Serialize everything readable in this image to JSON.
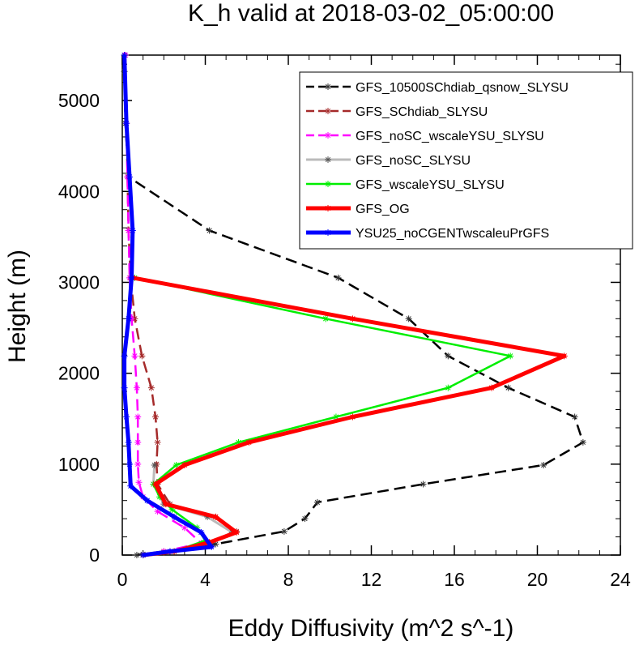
{
  "chart_data": {
    "type": "line",
    "title": "K_h valid at 2018-03-02_05:00:00",
    "xlabel": "Eddy Diffusivity (m^2 s^-1)",
    "ylabel": "Height (m)",
    "xlim": [
      0,
      24
    ],
    "ylim": [
      0,
      5500
    ],
    "xticks": [
      0,
      4,
      8,
      12,
      16,
      20,
      24
    ],
    "yticks": [
      0,
      1000,
      2000,
      3000,
      4000,
      5000
    ],
    "legend_position": "top-right",
    "grid": false,
    "series": [
      {
        "name": "GFS_10500SChdiab_qsnow_SLYSU",
        "color": "#000000",
        "dash": "dashed",
        "width": 2.5,
        "points": [
          [
            0.7,
            0
          ],
          [
            1.0,
            10
          ],
          [
            2.0,
            40
          ],
          [
            4.5,
            120
          ],
          [
            7.8,
            260
          ],
          [
            8.8,
            400
          ],
          [
            9.4,
            580
          ],
          [
            14.5,
            780
          ],
          [
            20.3,
            990
          ],
          [
            22.2,
            1240
          ],
          [
            21.8,
            1520
          ],
          [
            18.6,
            1840
          ],
          [
            15.7,
            2190
          ],
          [
            13.8,
            2600
          ],
          [
            10.4,
            3050
          ],
          [
            4.2,
            3570
          ],
          [
            0.3,
            4160
          ],
          [
            0.15,
            4750
          ],
          [
            0.1,
            5320
          ],
          [
            0.1,
            5500
          ]
        ]
      },
      {
        "name": "GFS_SChdiab_SLYSU",
        "color": "#a52a2a",
        "dash": "dashed",
        "width": 2.5,
        "points": [
          [
            1.0,
            0
          ],
          [
            2.0,
            30
          ],
          [
            4.2,
            120
          ],
          [
            5.5,
            260
          ],
          [
            4.5,
            420
          ],
          [
            2.3,
            560
          ],
          [
            1.7,
            780
          ],
          [
            1.65,
            1000
          ],
          [
            1.7,
            1240
          ],
          [
            1.6,
            1520
          ],
          [
            1.4,
            1840
          ],
          [
            0.95,
            2190
          ],
          [
            0.6,
            2600
          ],
          [
            0.4,
            3050
          ],
          [
            0.3,
            3570
          ],
          [
            0.25,
            4160
          ],
          [
            0.2,
            4750
          ],
          [
            0.15,
            5500
          ]
        ]
      },
      {
        "name": "GFS_noSC_wscaleYSU_SLYSU",
        "color": "#ff00ff",
        "dash": "dashed",
        "width": 2.5,
        "points": [
          [
            1.0,
            0
          ],
          [
            2.0,
            40
          ],
          [
            3.8,
            130
          ],
          [
            3.0,
            300
          ],
          [
            1.7,
            480
          ],
          [
            1.0,
            640
          ],
          [
            0.8,
            800
          ],
          [
            0.75,
            1000
          ],
          [
            0.75,
            1240
          ],
          [
            0.75,
            1520
          ],
          [
            0.7,
            1840
          ],
          [
            0.6,
            2190
          ],
          [
            0.45,
            2600
          ],
          [
            0.35,
            3050
          ],
          [
            0.3,
            3570
          ],
          [
            0.25,
            4160
          ],
          [
            0.2,
            4750
          ],
          [
            0.15,
            5500
          ]
        ]
      },
      {
        "name": "GFS_noSC_SLYSU",
        "color": "#bbbbbb",
        "dash": "solid",
        "width": 3,
        "points": [
          [
            1.0,
            0
          ],
          [
            2.5,
            40
          ],
          [
            4.2,
            130
          ],
          [
            5.3,
            250
          ],
          [
            4.1,
            420
          ],
          [
            2.0,
            560
          ],
          [
            1.5,
            780
          ],
          [
            1.55,
            990
          ]
        ]
      },
      {
        "name": "GFS_wscaleYSU_SLYSU",
        "color": "#00ee00",
        "dash": "solid",
        "width": 2.5,
        "points": [
          [
            1.0,
            0
          ],
          [
            2.5,
            40
          ],
          [
            4.0,
            160
          ],
          [
            3.6,
            300
          ],
          [
            2.4,
            500
          ],
          [
            1.8,
            640
          ],
          [
            1.5,
            780
          ],
          [
            2.6,
            990
          ],
          [
            5.6,
            1240
          ],
          [
            10.3,
            1520
          ],
          [
            15.7,
            1840
          ],
          [
            18.7,
            2190
          ],
          [
            9.8,
            2600
          ],
          [
            0.6,
            3050
          ]
        ]
      },
      {
        "name": "GFS_OG",
        "color": "#ff0000",
        "dash": "solid",
        "width": 5,
        "points": [
          [
            1.0,
            0
          ],
          [
            2.5,
            40
          ],
          [
            4.2,
            140
          ],
          [
            5.5,
            250
          ],
          [
            4.5,
            420
          ],
          [
            2.1,
            560
          ],
          [
            1.6,
            780
          ],
          [
            3.0,
            990
          ],
          [
            6.1,
            1240
          ],
          [
            11.1,
            1520
          ],
          [
            17.8,
            1840
          ],
          [
            21.3,
            2190
          ],
          [
            11.1,
            2600
          ],
          [
            0.5,
            3050
          ]
        ]
      },
      {
        "name": "YSU25_noCGENTwscaleuPrGFS",
        "color": "#0000ff",
        "dash": "solid",
        "width": 5,
        "points": [
          [
            1.0,
            0
          ],
          [
            2.3,
            40
          ],
          [
            4.3,
            90
          ],
          [
            3.8,
            250
          ],
          [
            2.5,
            420
          ],
          [
            1.2,
            600
          ],
          [
            0.4,
            760
          ],
          [
            0.35,
            1000
          ],
          [
            0.3,
            1240
          ],
          [
            0.2,
            1520
          ],
          [
            0.1,
            1840
          ],
          [
            0.1,
            2190
          ],
          [
            0.3,
            2600
          ],
          [
            0.45,
            3050
          ],
          [
            0.5,
            3570
          ],
          [
            0.35,
            4160
          ],
          [
            0.2,
            4750
          ],
          [
            0.1,
            5500
          ]
        ]
      }
    ]
  }
}
